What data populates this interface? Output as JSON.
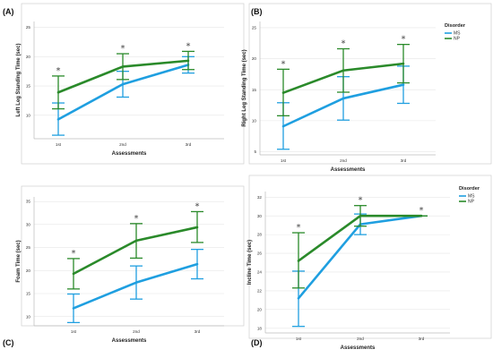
{
  "colors": {
    "MS": "#1f9fe0",
    "NP": "#2a8a2a"
  },
  "chart_data": [
    {
      "type": "line",
      "panel_label": "(A)",
      "xlabel": "Assessments",
      "ylabel": "Left Leg Standing Time (sec)",
      "categories": [
        "1st",
        "2nd",
        "3rd"
      ],
      "ylim": [
        6,
        26
      ],
      "yticks": [
        10,
        15,
        20,
        25
      ],
      "series": [
        {
          "name": "MS",
          "values": [
            9.3,
            15.3,
            18.6
          ],
          "err_low": [
            6.6,
            13.1,
            17.2
          ],
          "err_high": [
            12.1,
            17.5,
            20.0
          ]
        },
        {
          "name": "NP",
          "values": [
            13.9,
            18.3,
            19.3
          ],
          "err_low": [
            11.1,
            16.1,
            17.8
          ],
          "err_high": [
            16.7,
            20.5,
            20.9
          ]
        }
      ],
      "annotations": [
        "*",
        "*",
        "*"
      ],
      "legend": null
    },
    {
      "type": "line",
      "panel_label": "(B)",
      "xlabel": "Assessments",
      "ylabel": "Right Leg Standing Time (sec)",
      "categories": [
        "1st",
        "2nd",
        "3rd"
      ],
      "ylim": [
        4.5,
        26
      ],
      "yticks": [
        5,
        10,
        15,
        20,
        25
      ],
      "series": [
        {
          "name": "MS",
          "values": [
            9.1,
            13.6,
            15.8
          ],
          "err_low": [
            5.4,
            10.1,
            12.8
          ],
          "err_high": [
            12.9,
            17.1,
            18.8
          ]
        },
        {
          "name": "NP",
          "values": [
            14.5,
            18.1,
            19.2
          ],
          "err_low": [
            10.8,
            14.6,
            16.1
          ],
          "err_high": [
            18.3,
            21.6,
            22.3
          ]
        }
      ],
      "annotations": [
        "*",
        "*",
        "*"
      ],
      "legend": {
        "title": "Disorder",
        "entries": [
          "MS",
          "NP"
        ]
      }
    },
    {
      "type": "line",
      "panel_label": "(C)",
      "xlabel": "Assessments",
      "ylabel": "Foam Time (sec)",
      "categories": [
        "1st",
        "2nd",
        "3rd"
      ],
      "ylim": [
        8,
        36
      ],
      "yticks": [
        10,
        15,
        20,
        25,
        30,
        35
      ],
      "series": [
        {
          "name": "MS",
          "values": [
            11.8,
            17.4,
            21.4
          ],
          "err_low": [
            8.7,
            13.8,
            18.2
          ],
          "err_high": [
            14.9,
            21.0,
            24.6
          ]
        },
        {
          "name": "NP",
          "values": [
            19.3,
            26.5,
            29.4
          ],
          "err_low": [
            16.0,
            22.7,
            26.1
          ],
          "err_high": [
            22.6,
            30.2,
            32.8
          ]
        }
      ],
      "annotations": [
        "*",
        "*",
        "*"
      ],
      "legend": null
    },
    {
      "type": "line",
      "panel_label": "(D)",
      "xlabel": "Assessments",
      "ylabel": "Incline Time (sec)",
      "categories": [
        "1st",
        "2nd",
        "3rd"
      ],
      "ylim": [
        17.5,
        32.6
      ],
      "yticks": [
        18,
        20,
        22,
        24,
        26,
        28,
        30,
        32
      ],
      "series": [
        {
          "name": "MS",
          "values": [
            21.2,
            29.1,
            30.0
          ],
          "err_low": [
            18.2,
            28.0,
            30.0
          ],
          "err_high": [
            24.1,
            30.2,
            30.0
          ]
        },
        {
          "name": "NP",
          "values": [
            25.2,
            30.0,
            30.0
          ],
          "err_low": [
            22.3,
            28.9,
            30.0
          ],
          "err_high": [
            28.2,
            31.1,
            30.0
          ]
        }
      ],
      "annotations": [
        "*",
        "*",
        "*"
      ],
      "legend": {
        "title": "Disorder",
        "entries": [
          "MS",
          "NP"
        ]
      }
    }
  ]
}
